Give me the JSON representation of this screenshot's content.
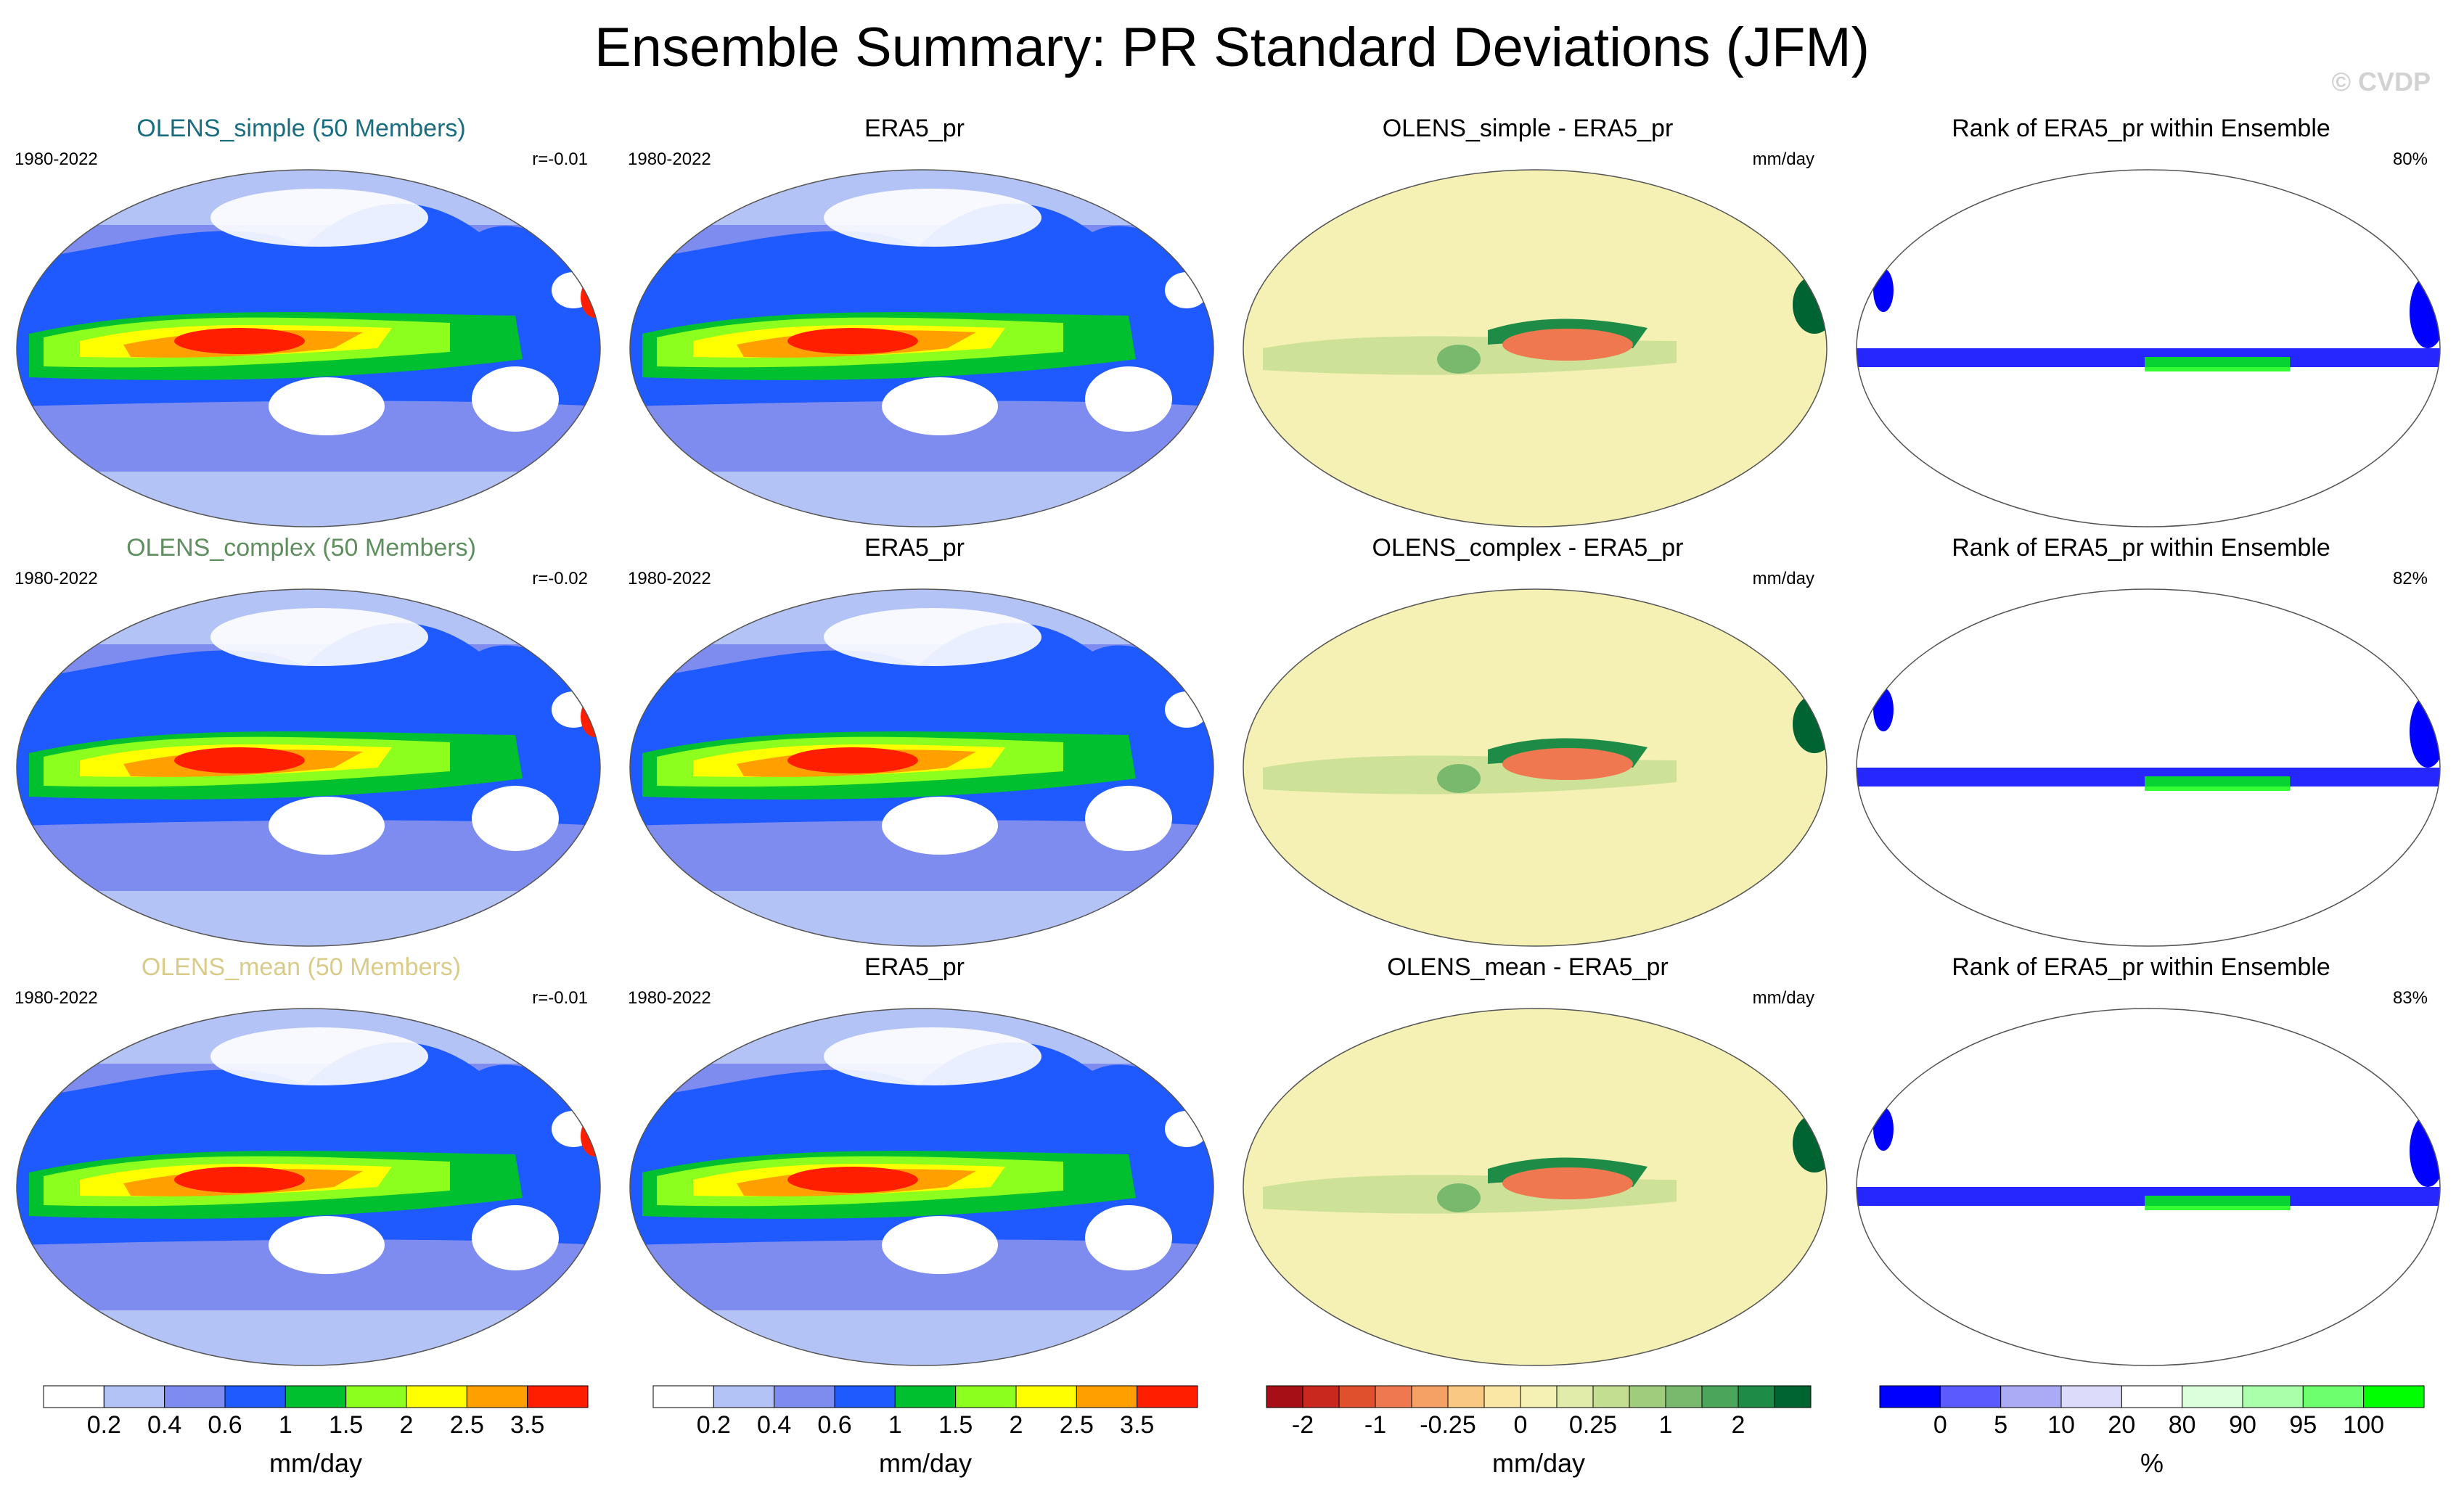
{
  "title": "Ensemble Summary: PR Standard Deviations (JFM)",
  "watermark": "© CVDP",
  "rows": [
    {
      "model": {
        "title": "OLENS_simple (50 Members)",
        "title_color": "#1a6d7f",
        "period": "1980-2022",
        "stat": "r=-0.01"
      },
      "obs": {
        "title": "ERA5_pr",
        "period": "1980-2022"
      },
      "diff": {
        "title": "OLENS_simple - ERA5_pr",
        "units": "mm/day"
      },
      "rank": {
        "title": "Rank of ERA5_pr within Ensemble",
        "stat": "80%"
      }
    },
    {
      "model": {
        "title": "OLENS_complex (50 Members)",
        "title_color": "#5f8f5f",
        "period": "1980-2022",
        "stat": "r=-0.02"
      },
      "obs": {
        "title": "ERA5_pr",
        "period": "1980-2022"
      },
      "diff": {
        "title": "OLENS_complex - ERA5_pr",
        "units": "mm/day"
      },
      "rank": {
        "title": "Rank of ERA5_pr within Ensemble",
        "stat": "82%"
      }
    },
    {
      "model": {
        "title": "OLENS_mean (50 Members)",
        "title_color": "#d9cc8a",
        "period": "1980-2022",
        "stat": "r=-0.01"
      },
      "obs": {
        "title": "ERA5_pr",
        "period": "1980-2022"
      },
      "diff": {
        "title": "OLENS_mean - ERA5_pr",
        "units": "mm/day"
      },
      "rank": {
        "title": "Rank of ERA5_pr within Ensemble",
        "stat": "83%"
      }
    }
  ],
  "chart_data": [
    {
      "type": "heatmap",
      "name": "standard deviation colorbar (model and ERA5 panels)",
      "units": "mm/day",
      "boundaries": [
        "0.2",
        "0.4",
        "0.6",
        "1",
        "1.5",
        "2",
        "2.5",
        "3.5"
      ],
      "colors": [
        "#ffffff",
        "#b4c3f5",
        "#7d8cee",
        "#1e5aff",
        "#00c030",
        "#8cff1e",
        "#ffff00",
        "#ffa000",
        "#ff1e00"
      ]
    },
    {
      "type": "heatmap",
      "name": "standard deviation colorbar (ERA5 column)",
      "units": "mm/day",
      "boundaries": [
        "0.2",
        "0.4",
        "0.6",
        "1",
        "1.5",
        "2",
        "2.5",
        "3.5"
      ],
      "colors": [
        "#ffffff",
        "#b4c3f5",
        "#7d8cee",
        "#1e5aff",
        "#00c030",
        "#8cff1e",
        "#ffff00",
        "#ffa000",
        "#ff1e00"
      ]
    },
    {
      "type": "heatmap",
      "name": "difference colorbar",
      "units": "mm/day",
      "boundaries": [
        "-2",
        "",
        "-1",
        "",
        "-0.25",
        "",
        "0",
        "",
        "0.25",
        "",
        "1",
        "",
        "2",
        ""
      ],
      "colors": [
        "#a50f15",
        "#c8281e",
        "#e0502d",
        "#f07850",
        "#f5a064",
        "#f9c882",
        "#fbe7a5",
        "#f5f0b4",
        "#e1ebaa",
        "#c3de91",
        "#a0cd7d",
        "#78b96e",
        "#4ba55a",
        "#1e8c46",
        "#006432"
      ]
    },
    {
      "type": "heatmap",
      "name": "rank colorbar",
      "units": "%",
      "boundaries": [
        "0",
        "5",
        "10",
        "20",
        "80",
        "90",
        "95",
        "100"
      ],
      "colors": [
        "#0000ff",
        "#5a5aff",
        "#aaaaf5",
        "#dcdcfa",
        "#ffffff",
        "#dcffdc",
        "#aaffaa",
        "#6eff6e",
        "#00ff00"
      ]
    }
  ]
}
